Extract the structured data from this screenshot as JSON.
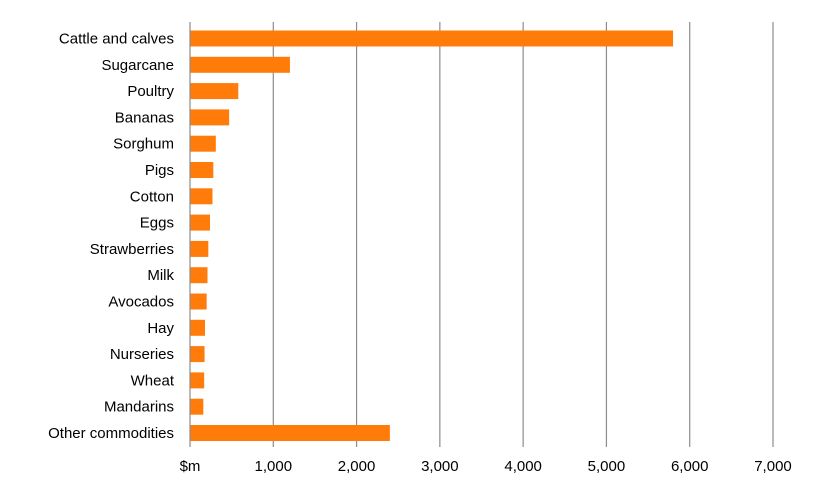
{
  "chart_data": {
    "type": "bar",
    "orientation": "horizontal",
    "categories": [
      "Cattle and calves",
      "Sugarcane",
      "Poultry",
      "Bananas",
      "Sorghum",
      "Pigs",
      "Cotton",
      "Eggs",
      "Strawberries",
      "Milk",
      "Avocados",
      "Hay",
      "Nurseries",
      "Wheat",
      "Mandarins",
      "Other commodities"
    ],
    "values": [
      5800,
      1200,
      580,
      470,
      310,
      280,
      270,
      240,
      220,
      210,
      200,
      180,
      175,
      170,
      160,
      2400
    ],
    "xlim": [
      0,
      7000
    ],
    "x_ticks": [
      0,
      1000,
      2000,
      3000,
      4000,
      5000,
      6000,
      7000
    ],
    "x_tick_labels": [
      "$m",
      "1,000",
      "2,000",
      "3,000",
      "4,000",
      "5,000",
      "6,000",
      "7,000"
    ],
    "bar_color": "#ff7c0a",
    "grid": true,
    "title": "",
    "xlabel": "",
    "ylabel": ""
  }
}
